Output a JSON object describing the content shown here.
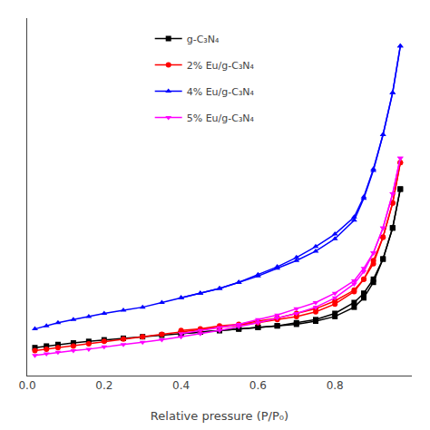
{
  "chart_data": {
    "type": "line",
    "x_label": "Relative pressure (P/P₀)",
    "xlim": [
      0.0,
      1.0
    ],
    "xticks": [
      {
        "value": 0.0,
        "label": "0.0"
      },
      0.2,
      0.4,
      0.6,
      0.8
    ],
    "ylim": [
      0,
      230
    ],
    "yticks": [],
    "tick_labels": "x",
    "grid": false,
    "legend": "upper left",
    "series": [
      {
        "name": "g-C₃N₄",
        "color": "#000000",
        "marker": "square",
        "x": [
          0.02,
          0.05,
          0.08,
          0.12,
          0.16,
          0.2,
          0.25,
          0.3,
          0.35,
          0.4,
          0.45,
          0.5,
          0.55,
          0.6,
          0.65,
          0.7,
          0.75,
          0.8,
          0.85,
          0.875,
          0.9,
          0.925,
          0.95,
          0.97
        ],
        "values": [
          18,
          19,
          20,
          21,
          22,
          23,
          24,
          25,
          26,
          27,
          28,
          29,
          30,
          31,
          32,
          33,
          35,
          38,
          44,
          50,
          60,
          75,
          95,
          120
        ],
        "desorption_x": [
          0.97,
          0.95,
          0.925,
          0.9,
          0.875,
          0.85,
          0.8,
          0.75,
          0.7,
          0.65,
          0.6,
          0.55,
          0.5,
          0.45,
          0.4
        ],
        "desorption_values": [
          120,
          95,
          75,
          62,
          53,
          47,
          40,
          36,
          34,
          32,
          31,
          30,
          29,
          28,
          27
        ]
      },
      {
        "name": "2% Eu/g-C₃N₄",
        "color": "#ff0000",
        "marker": "circle",
        "x": [
          0.02,
          0.05,
          0.08,
          0.12,
          0.16,
          0.2,
          0.25,
          0.3,
          0.35,
          0.4,
          0.45,
          0.5,
          0.55,
          0.6,
          0.65,
          0.7,
          0.75,
          0.8,
          0.85,
          0.875,
          0.9,
          0.925,
          0.95,
          0.97
        ],
        "values": [
          16,
          17,
          18,
          19,
          20.5,
          22,
          23.5,
          25,
          26.5,
          28,
          29.5,
          31,
          32.5,
          34,
          36,
          38,
          41,
          46,
          54,
          62,
          74,
          89,
          111,
          137
        ],
        "desorption_x": [
          0.97,
          0.95,
          0.925,
          0.9,
          0.875,
          0.85,
          0.8,
          0.75,
          0.7,
          0.65,
          0.6,
          0.55,
          0.5,
          0.45,
          0.4
        ],
        "desorption_values": [
          137,
          111,
          89,
          72,
          62,
          55,
          48,
          43,
          40,
          37,
          35,
          33,
          32,
          30,
          29
        ]
      },
      {
        "name": "4% Eu/g-C₃N₄",
        "color": "#0000ff",
        "marker": "triangle-up",
        "x": [
          0.02,
          0.05,
          0.08,
          0.12,
          0.16,
          0.2,
          0.25,
          0.3,
          0.35,
          0.4,
          0.45,
          0.5,
          0.55,
          0.6,
          0.65,
          0.7,
          0.75,
          0.8,
          0.85,
          0.875,
          0.9,
          0.925,
          0.95,
          0.97
        ],
        "values": [
          30,
          32,
          34,
          36,
          38,
          40,
          42,
          44,
          47,
          50,
          53,
          56,
          60,
          64,
          69,
          74,
          80,
          88,
          100,
          114,
          132,
          155,
          182,
          212
        ],
        "desorption_x": [
          0.97,
          0.95,
          0.925,
          0.9,
          0.875,
          0.85,
          0.8,
          0.75,
          0.7,
          0.65,
          0.6,
          0.55,
          0.5,
          0.45,
          0.4
        ],
        "desorption_values": [
          212,
          182,
          155,
          133,
          115,
          102,
          91,
          83,
          76,
          70,
          65,
          60,
          56,
          53,
          50
        ]
      },
      {
        "name": "5% Eu/g-C₃N₄",
        "color": "#ff00ff",
        "marker": "triangle-down",
        "x": [
          0.02,
          0.05,
          0.08,
          0.12,
          0.16,
          0.2,
          0.25,
          0.3,
          0.35,
          0.4,
          0.45,
          0.5,
          0.55,
          0.6,
          0.65,
          0.7,
          0.75,
          0.8,
          0.85,
          0.875,
          0.9,
          0.925,
          0.95,
          0.97
        ],
        "values": [
          13,
          14,
          15,
          16,
          17,
          18.5,
          20,
          21.5,
          23,
          25,
          27,
          29,
          31.5,
          34,
          37,
          40,
          44,
          50,
          59,
          67,
          79,
          95,
          117,
          140
        ],
        "desorption_x": [
          0.97,
          0.95,
          0.925,
          0.9,
          0.875,
          0.85,
          0.8,
          0.75,
          0.7,
          0.65,
          0.6,
          0.55,
          0.5,
          0.45,
          0.4
        ],
        "desorption_values": [
          140,
          117,
          95,
          79,
          69,
          61,
          53,
          47,
          43,
          39,
          36,
          33,
          31,
          29,
          27
        ]
      }
    ]
  }
}
